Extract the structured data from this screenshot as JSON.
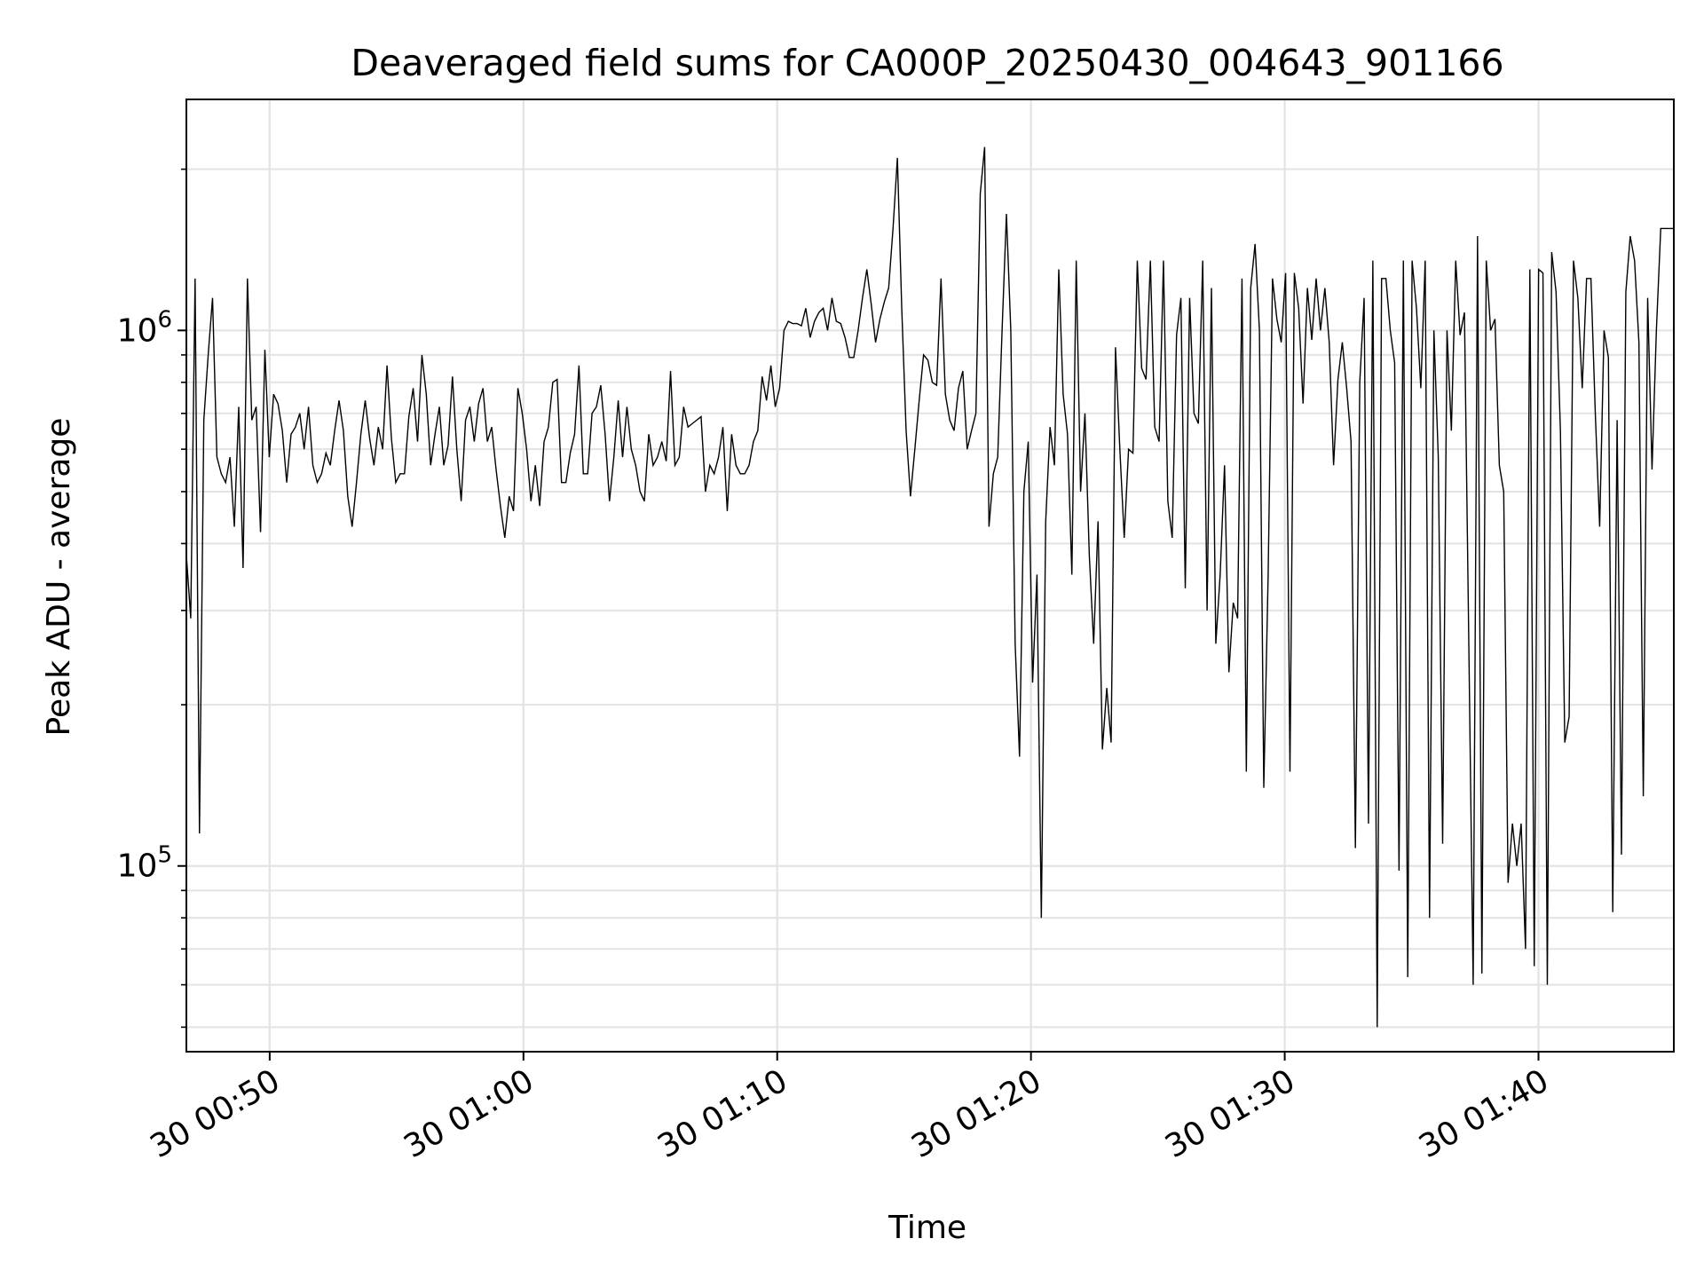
{
  "chart_data": {
    "type": "line",
    "title": "Deaveraged field sums for CA000P_20250430_004643_901166",
    "xlabel": "Time",
    "ylabel": "Peak ADU - average",
    "yscale": "log",
    "grid": true,
    "x_start": "2025-04-30 00:46:43",
    "x_end": "2025-04-30 01:45:20",
    "xlim": [
      "2025-04-30 00:46:43",
      "2025-04-30 01:45:20"
    ],
    "ylim": [
      45000,
      2700000
    ],
    "x_ticks": [
      {
        "time": "2025-04-30 00:50:00",
        "label": "30 00:50"
      },
      {
        "time": "2025-04-30 01:00:00",
        "label": "30 01:00"
      },
      {
        "time": "2025-04-30 01:10:00",
        "label": "30 01:10"
      },
      {
        "time": "2025-04-30 01:20:00",
        "label": "30 01:20"
      },
      {
        "time": "2025-04-30 01:30:00",
        "label": "30 01:30"
      },
      {
        "time": "2025-04-30 01:40:00",
        "label": "30 01:40"
      }
    ],
    "y_ticks": [
      {
        "value": 100000,
        "base": "10",
        "exp": "5"
      },
      {
        "value": 1000000,
        "base": "10",
        "exp": "6"
      }
    ],
    "series": [
      {
        "color": "#000000",
        "values": [
          380000,
          290000,
          1250000,
          115000,
          680000,
          900000,
          1150000,
          580000,
          540000,
          520000,
          580000,
          430000,
          720000,
          360000,
          1250000,
          680000,
          720000,
          420000,
          920000,
          580000,
          760000,
          730000,
          650000,
          520000,
          640000,
          660000,
          700000,
          600000,
          720000,
          560000,
          520000,
          540000,
          590000,
          560000,
          650000,
          740000,
          650000,
          490000,
          430000,
          520000,
          640000,
          740000,
          630000,
          560000,
          660000,
          600000,
          860000,
          630000,
          520000,
          540000,
          540000,
          690000,
          780000,
          620000,
          900000,
          760000,
          560000,
          640000,
          720000,
          560000,
          610000,
          820000,
          600000,
          480000,
          680000,
          720000,
          620000,
          730000,
          780000,
          620000,
          660000,
          550000,
          470000,
          410000,
          490000,
          460000,
          780000,
          700000,
          600000,
          480000,
          560000,
          470000,
          620000,
          660000,
          800000,
          810000,
          520000,
          520000,
          590000,
          640000,
          860000,
          540000,
          540000,
          700000,
          720000,
          790000,
          640000,
          480000,
          580000,
          740000,
          580000,
          720000,
          600000,
          560000,
          500000,
          480000,
          640000,
          560000,
          580000,
          620000,
          570000,
          840000,
          560000,
          580000,
          720000,
          660000,
          670000,
          680000,
          690000,
          500000,
          560000,
          540000,
          580000,
          660000,
          460000,
          640000,
          560000,
          540000,
          540000,
          560000,
          620000,
          650000,
          820000,
          740000,
          860000,
          720000,
          780000,
          1000000,
          1040000,
          1030000,
          1030000,
          1020000,
          1100000,
          970000,
          1040000,
          1080000,
          1100000,
          1000000,
          1150000,
          1040000,
          1030000,
          970000,
          890000,
          890000,
          1000000,
          1150000,
          1300000,
          1120000,
          950000,
          1050000,
          1130000,
          1200000,
          1550000,
          2100000,
          1100000,
          650000,
          490000,
          600000,
          740000,
          900000,
          880000,
          800000,
          790000,
          1250000,
          760000,
          680000,
          650000,
          780000,
          840000,
          600000,
          650000,
          700000,
          1800000,
          2200000,
          430000,
          540000,
          580000,
          1000000,
          1650000,
          1000000,
          260000,
          160000,
          500000,
          620000,
          220000,
          350000,
          80000,
          440000,
          660000,
          560000,
          1300000,
          760000,
          640000,
          350000,
          1350000,
          500000,
          700000,
          380000,
          260000,
          440000,
          165000,
          215000,
          170000,
          930000,
          600000,
          410000,
          600000,
          590000,
          1350000,
          850000,
          810000,
          1350000,
          660000,
          620000,
          1350000,
          480000,
          410000,
          980000,
          1150000,
          330000,
          1150000,
          700000,
          670000,
          1350000,
          300000,
          1200000,
          260000,
          350000,
          560000,
          230000,
          310000,
          290000,
          1250000,
          150000,
          1200000,
          1450000,
          1000000,
          140000,
          350000,
          1250000,
          1050000,
          950000,
          1280000,
          150000,
          1280000,
          1100000,
          730000,
          1200000,
          960000,
          1250000,
          1000000,
          1200000,
          950000,
          560000,
          810000,
          950000,
          780000,
          620000,
          108000,
          800000,
          1150000,
          120000,
          1350000,
          50000,
          1250000,
          1250000,
          1000000,
          870000,
          98000,
          1350000,
          62000,
          1350000,
          1100000,
          780000,
          1350000,
          80000,
          1000000,
          580000,
          110000,
          1000000,
          650000,
          1350000,
          980000,
          1080000,
          260000,
          60000,
          1500000,
          63000,
          1350000,
          1000000,
          1050000,
          560000,
          500000,
          93000,
          120000,
          100000,
          120000,
          70000,
          1300000,
          65000,
          1300000,
          1280000,
          60000,
          1400000,
          1180000,
          650000,
          170000,
          190000,
          1350000,
          1150000,
          780000,
          1250000,
          1250000,
          700000,
          430000,
          1000000,
          890000,
          82000,
          680000,
          105000,
          1180000,
          1500000,
          1350000,
          950000,
          135000,
          1150000,
          550000,
          1000000,
          1550000,
          1550000,
          1550000,
          1550000
        ]
      }
    ]
  }
}
